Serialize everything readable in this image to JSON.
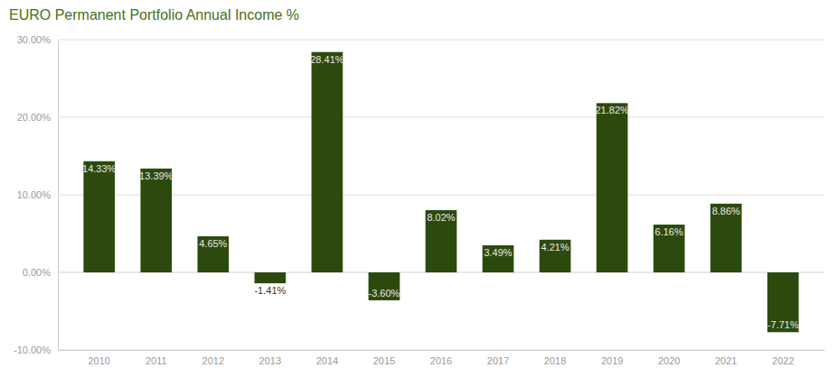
{
  "chart_data": {
    "type": "bar",
    "title": "EURO Permanent Portfolio Annual Income %",
    "categories": [
      "2010",
      "2011",
      "2012",
      "2013",
      "2014",
      "2015",
      "2016",
      "2017",
      "2018",
      "2019",
      "2020",
      "2021",
      "2022"
    ],
    "values": [
      14.33,
      13.39,
      4.65,
      -1.41,
      28.41,
      -3.6,
      8.02,
      3.49,
      4.21,
      21.82,
      6.16,
      8.86,
      -7.71
    ],
    "value_labels": [
      "14.33%",
      "13.39%",
      "4.65%",
      "-1.41%",
      "28.41%",
      "-3.60%",
      "8.02%",
      "3.49%",
      "4.21%",
      "21.82%",
      "6.16%",
      "8.86%",
      "-7.71%"
    ],
    "color": "#2d4a0e",
    "ylim": [
      -10,
      30
    ],
    "yticks": [
      {
        "value": -10,
        "label": "-10.00%"
      },
      {
        "value": 0,
        "label": "0.00%"
      },
      {
        "value": 10,
        "label": "10.00%"
      },
      {
        "value": 20,
        "label": "20.00%"
      },
      {
        "value": 30,
        "label": "30.00%"
      }
    ],
    "grid": true,
    "data_labels": true
  }
}
